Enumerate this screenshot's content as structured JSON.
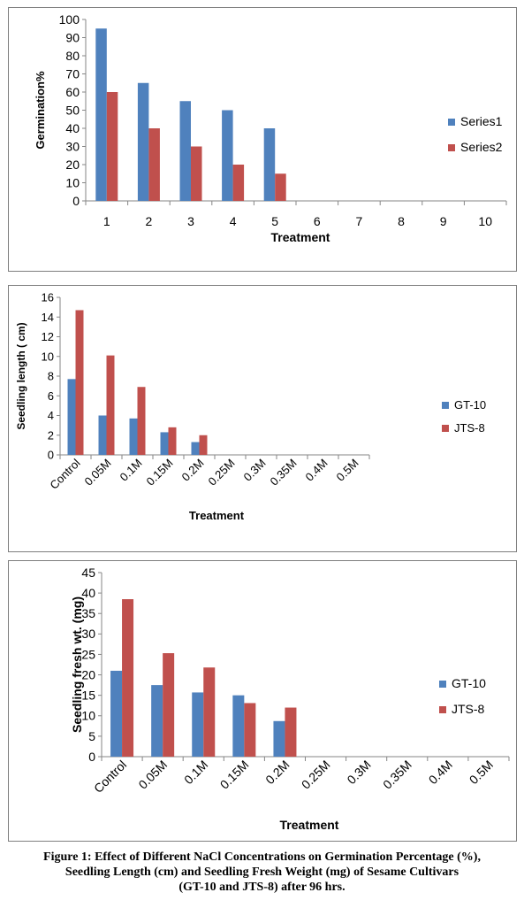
{
  "colors": {
    "series_a": "#4f81bd",
    "series_b": "#c0504d",
    "axis": "#868686",
    "border": "#7f7f7f"
  },
  "chart_data": [
    {
      "type": "bar",
      "title": "",
      "xlabel": "Treatment",
      "ylabel": "Germination%",
      "ylim": [
        0,
        100
      ],
      "ytick_step": 10,
      "grid": false,
      "legend_position": "right",
      "categories": [
        "1",
        "2",
        "3",
        "4",
        "5",
        "6",
        "7",
        "8",
        "9",
        "10"
      ],
      "series": [
        {
          "name": "Series1",
          "values": [
            95,
            65,
            55,
            50,
            40,
            0,
            0,
            0,
            0,
            0
          ]
        },
        {
          "name": "Series2",
          "values": [
            60,
            40,
            30,
            20,
            15,
            0,
            0,
            0,
            0,
            0
          ]
        }
      ]
    },
    {
      "type": "bar",
      "title": "",
      "xlabel": "Treatment",
      "ylabel": "Seedling length ( cm)",
      "ylim": [
        0,
        16
      ],
      "ytick_step": 2,
      "grid": false,
      "legend_position": "right",
      "categories": [
        "Control",
        "0.05M",
        "0.1M",
        "0.15M",
        "0.2M",
        "0.25M",
        "0.3M",
        "0.35M",
        "0.4M",
        "0.5M"
      ],
      "series": [
        {
          "name": "GT-10",
          "values": [
            7.7,
            4.0,
            3.7,
            2.3,
            1.3,
            0,
            0,
            0,
            0,
            0
          ]
        },
        {
          "name": "JTS-8",
          "values": [
            14.7,
            10.1,
            6.9,
            2.8,
            2.0,
            0,
            0,
            0,
            0,
            0
          ]
        }
      ]
    },
    {
      "type": "bar",
      "title": "",
      "xlabel": "Treatment",
      "ylabel": "Seedling fresh wt. (mg)",
      "ylim": [
        0,
        45
      ],
      "ytick_step": 5,
      "grid": false,
      "legend_position": "right",
      "categories": [
        "Control",
        "0.05M",
        "0.1M",
        "0.15M",
        "0.2M",
        "0.25M",
        "0.3M",
        "0.35M",
        "0.4M",
        "0.5M"
      ],
      "series": [
        {
          "name": "GT-10",
          "values": [
            21.0,
            17.5,
            15.7,
            15.0,
            8.7,
            0,
            0,
            0,
            0,
            0
          ]
        },
        {
          "name": "JTS-8",
          "values": [
            38.5,
            25.3,
            21.8,
            13.1,
            12.0,
            0,
            0,
            0,
            0,
            0
          ]
        }
      ]
    }
  ],
  "caption": {
    "line1": "Figure 1: Effect of Different NaCl Concentrations on Germination Percentage (%),",
    "line2": "Seedling Length (cm) and Seedling Fresh Weight (mg) of Sesame Cultivars",
    "line3": "(GT-10 and JTS-8) after 96 hrs."
  }
}
